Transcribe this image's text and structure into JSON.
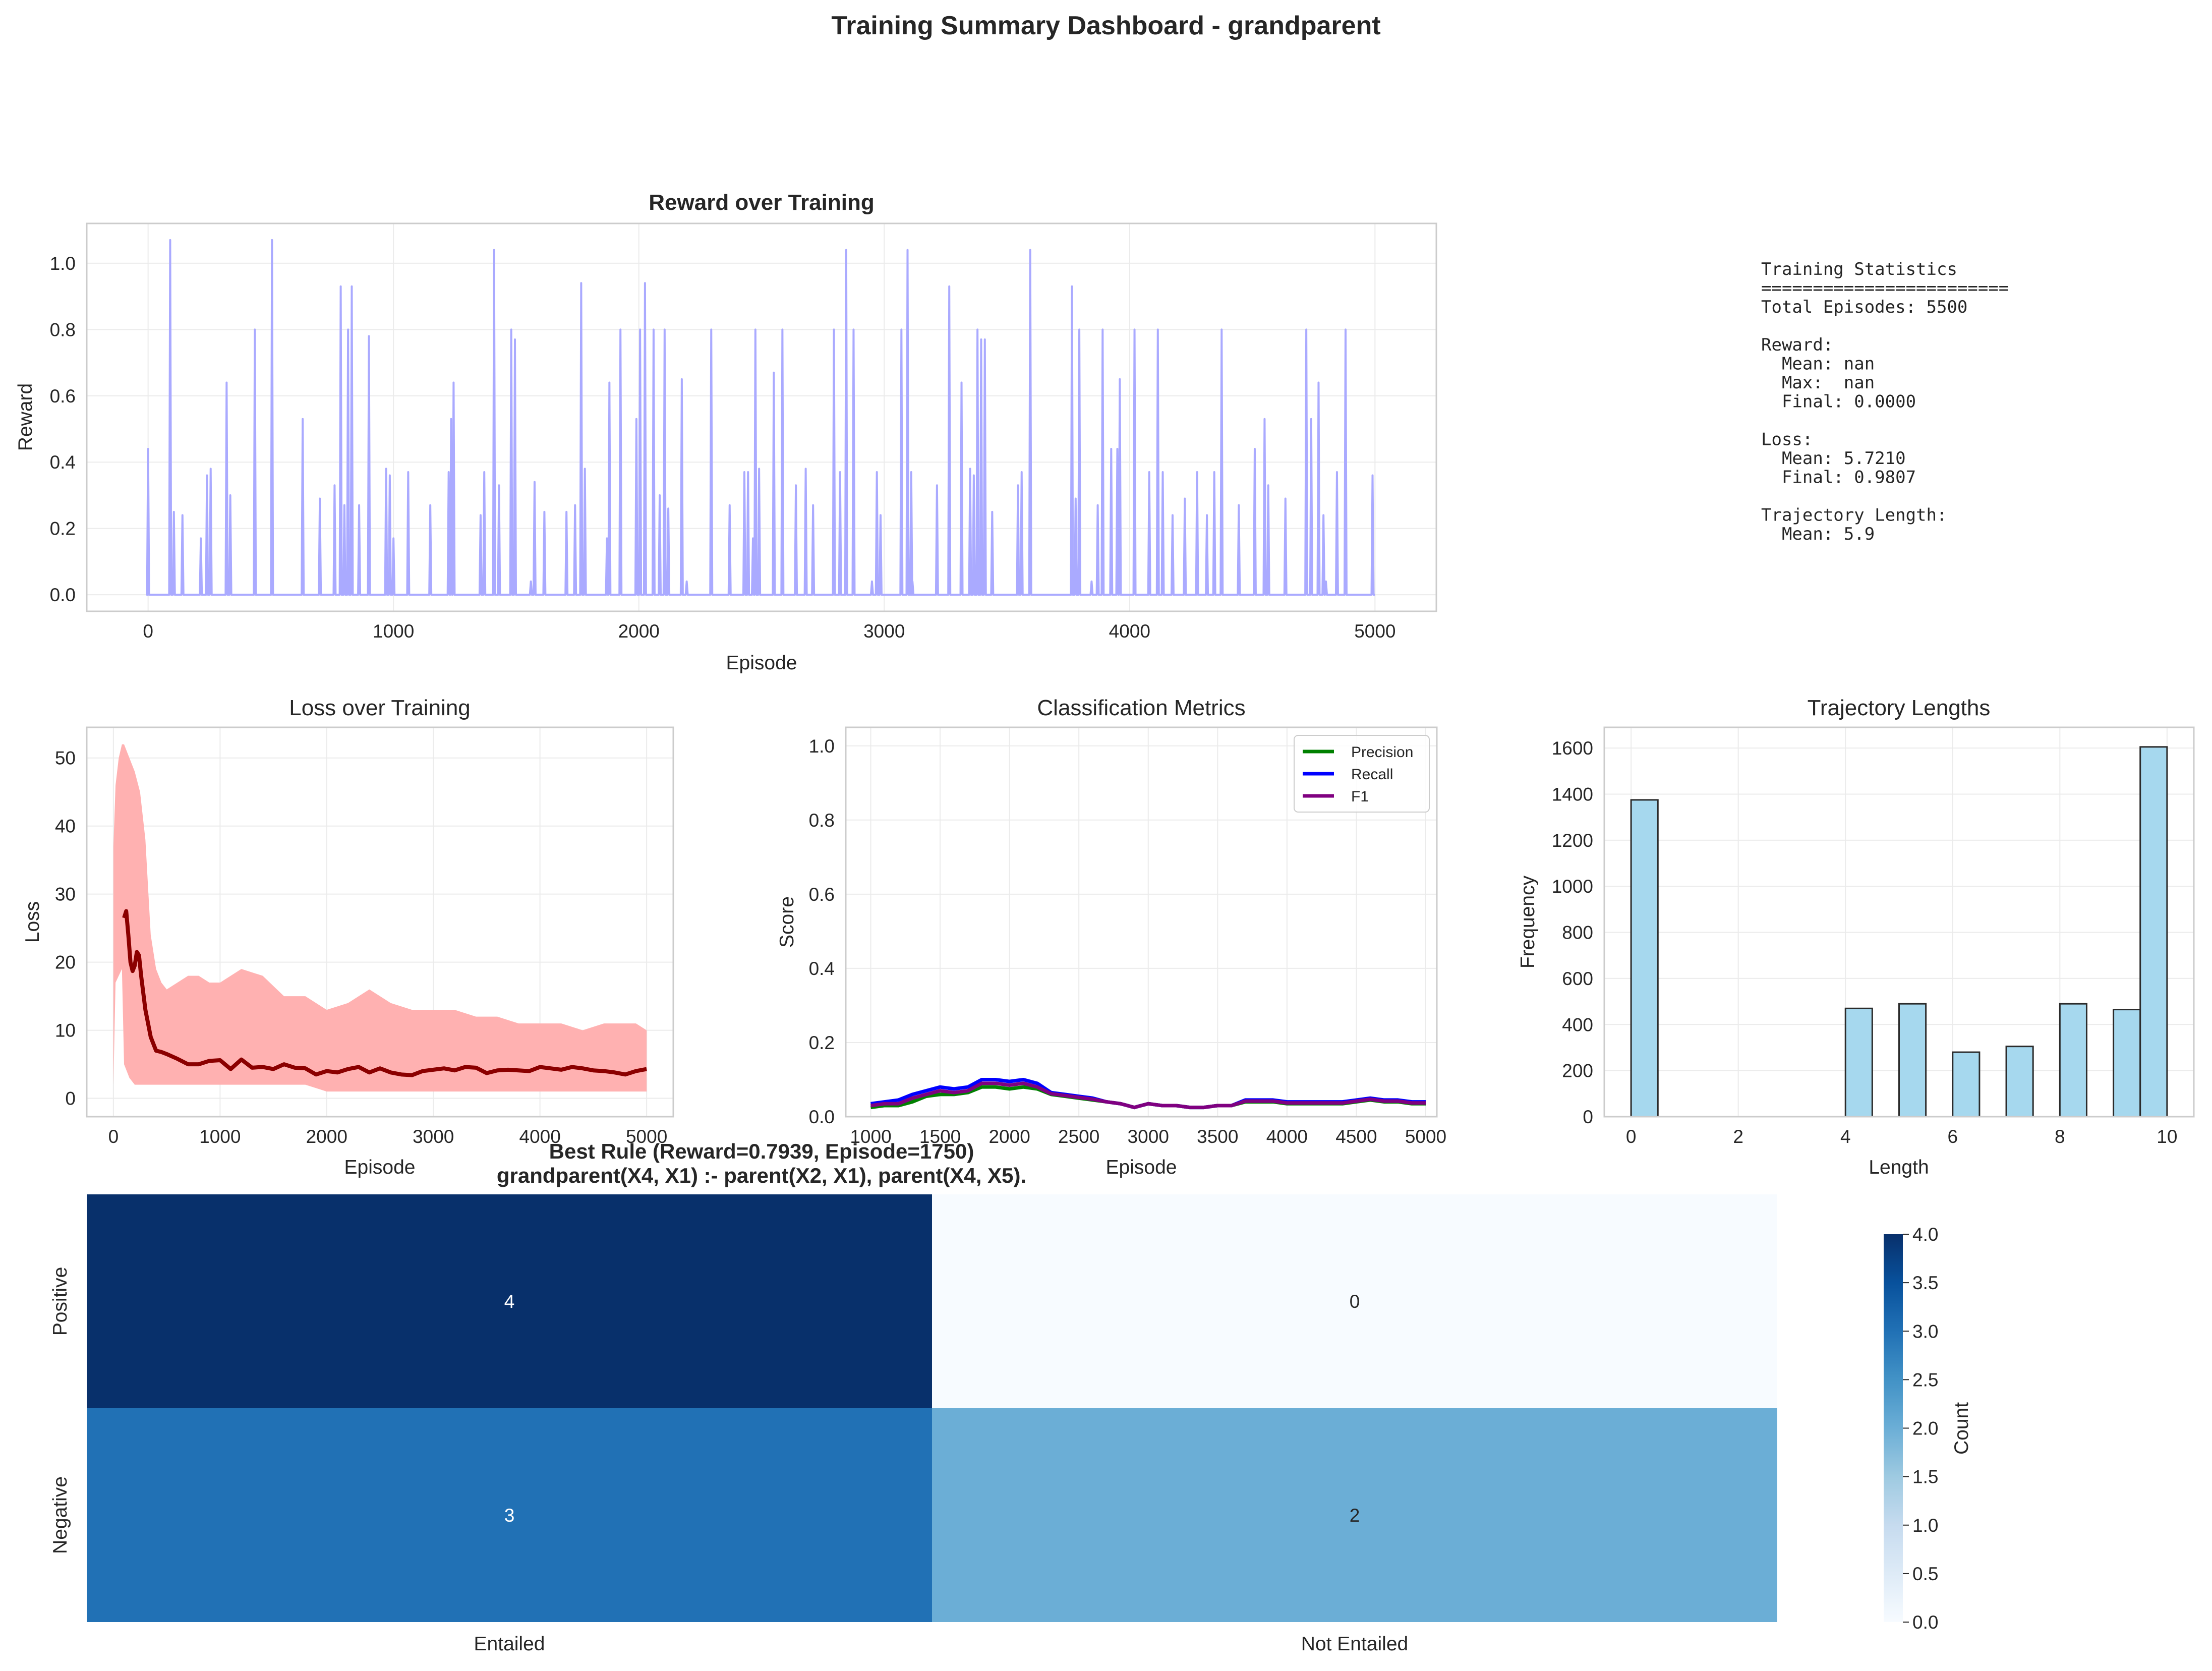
{
  "dashboard_title": "Training Summary Dashboard - grandparent",
  "stats_lines": [
    "Training Statistics",
    "========================",
    "Total Episodes: 5500",
    "",
    "Reward:",
    "  Mean: nan",
    "  Max:  nan",
    "  Final: 0.0000",
    "",
    "Loss:",
    "  Mean: 5.7210",
    "  Final: 0.9807",
    "",
    "Trajectory Length:",
    "  Mean: 5.9"
  ],
  "colors": {
    "reward": "#aaaaff",
    "loss_band": "#ffb1b1",
    "loss_line": "#8b0000",
    "precision": "#008000",
    "recall": "#0000ff",
    "f1": "#800080",
    "hist_fill": "#a6d8ee",
    "heat_low": "#f7fbff",
    "heat_high": "#08306b"
  },
  "chart_data": [
    {
      "id": "reward",
      "type": "line",
      "title": "Reward over Training",
      "xlabel": "Episode",
      "ylabel": "Reward",
      "xlim": [
        -250,
        5250
      ],
      "ylim": [
        -0.05,
        1.12
      ],
      "xticks": [
        0,
        1000,
        2000,
        3000,
        4000,
        5000
      ],
      "yticks": [
        0.0,
        0.2,
        0.4,
        0.6,
        0.8,
        1.0
      ],
      "grid": true,
      "baseline": 0.0,
      "spikes": [
        [
          0,
          0.44
        ],
        [
          90,
          1.07
        ],
        [
          105,
          0.25
        ],
        [
          140,
          0.24
        ],
        [
          215,
          0.17
        ],
        [
          240,
          0.36
        ],
        [
          255,
          0.38
        ],
        [
          320,
          0.64
        ],
        [
          335,
          0.3
        ],
        [
          435,
          0.8
        ],
        [
          505,
          1.07
        ],
        [
          630,
          0.53
        ],
        [
          700,
          0.29
        ],
        [
          760,
          0.33
        ],
        [
          785,
          0.93
        ],
        [
          800,
          0.27
        ],
        [
          815,
          0.8
        ],
        [
          830,
          0.93
        ],
        [
          860,
          0.27
        ],
        [
          900,
          0.78
        ],
        [
          970,
          0.38
        ],
        [
          985,
          0.36
        ],
        [
          1000,
          0.17
        ],
        [
          1060,
          0.37
        ],
        [
          1150,
          0.27
        ],
        [
          1225,
          0.37
        ],
        [
          1235,
          0.53
        ],
        [
          1245,
          0.64
        ],
        [
          1355,
          0.24
        ],
        [
          1370,
          0.37
        ],
        [
          1410,
          1.04
        ],
        [
          1430,
          0.33
        ],
        [
          1480,
          0.8
        ],
        [
          1495,
          0.77
        ],
        [
          1560,
          0.04
        ],
        [
          1575,
          0.34
        ],
        [
          1615,
          0.25
        ],
        [
          1705,
          0.25
        ],
        [
          1740,
          0.27
        ],
        [
          1765,
          0.94
        ],
        [
          1780,
          0.38
        ],
        [
          1870,
          0.17
        ],
        [
          1880,
          0.64
        ],
        [
          1925,
          0.8
        ],
        [
          1990,
          0.53
        ],
        [
          2005,
          0.8
        ],
        [
          2025,
          0.94
        ],
        [
          2060,
          0.8
        ],
        [
          2085,
          0.3
        ],
        [
          2105,
          0.8
        ],
        [
          2120,
          0.26
        ],
        [
          2175,
          0.65
        ],
        [
          2195,
          0.04
        ],
        [
          2295,
          0.8
        ],
        [
          2370,
          0.27
        ],
        [
          2430,
          0.37
        ],
        [
          2445,
          0.37
        ],
        [
          2465,
          0.17
        ],
        [
          2475,
          0.8
        ],
        [
          2490,
          0.38
        ],
        [
          2550,
          0.67
        ],
        [
          2585,
          0.8
        ],
        [
          2640,
          0.33
        ],
        [
          2680,
          0.38
        ],
        [
          2710,
          0.27
        ],
        [
          2795,
          0.8
        ],
        [
          2820,
          0.37
        ],
        [
          2845,
          1.04
        ],
        [
          2875,
          0.8
        ],
        [
          2950,
          0.04
        ],
        [
          2970,
          0.37
        ],
        [
          2985,
          0.24
        ],
        [
          3070,
          0.8
        ],
        [
          3095,
          1.04
        ],
        [
          3110,
          0.37
        ],
        [
          3115,
          0.04
        ],
        [
          3215,
          0.33
        ],
        [
          3265,
          0.93
        ],
        [
          3315,
          0.64
        ],
        [
          3350,
          0.38
        ],
        [
          3365,
          0.36
        ],
        [
          3380,
          0.8
        ],
        [
          3395,
          0.77
        ],
        [
          3410,
          0.77
        ],
        [
          3440,
          0.25
        ],
        [
          3545,
          0.33
        ],
        [
          3560,
          0.37
        ],
        [
          3595,
          1.04
        ],
        [
          3765,
          0.93
        ],
        [
          3780,
          0.29
        ],
        [
          3795,
          0.8
        ],
        [
          3845,
          0.04
        ],
        [
          3870,
          0.27
        ],
        [
          3890,
          0.8
        ],
        [
          3925,
          0.44
        ],
        [
          3950,
          0.44
        ],
        [
          3960,
          0.65
        ],
        [
          4020,
          0.8
        ],
        [
          4080,
          0.37
        ],
        [
          4115,
          0.8
        ],
        [
          4135,
          0.37
        ],
        [
          4175,
          0.24
        ],
        [
          4225,
          0.29
        ],
        [
          4275,
          0.37
        ],
        [
          4315,
          0.24
        ],
        [
          4345,
          0.37
        ],
        [
          4375,
          0.8
        ],
        [
          4445,
          0.27
        ],
        [
          4510,
          0.44
        ],
        [
          4550,
          0.53
        ],
        [
          4565,
          0.33
        ],
        [
          4635,
          0.29
        ],
        [
          4720,
          0.8
        ],
        [
          4740,
          0.53
        ],
        [
          4770,
          0.64
        ],
        [
          4790,
          0.24
        ],
        [
          4800,
          0.04
        ],
        [
          4845,
          0.37
        ],
        [
          4880,
          0.8
        ],
        [
          4990,
          0.36
        ]
      ]
    },
    {
      "id": "loss",
      "type": "area",
      "title": "Loss over Training",
      "xlabel": "Episode",
      "ylabel": "Loss",
      "xlim": [
        -250,
        5250
      ],
      "ylim": [
        -2.7,
        54.5
      ],
      "xticks": [
        0,
        1000,
        2000,
        3000,
        4000,
        5000
      ],
      "yticks": [
        0,
        10,
        20,
        30,
        40,
        50
      ],
      "grid": true,
      "band": {
        "x": [
          0,
          20,
          50,
          80,
          100,
          150,
          200,
          250,
          300,
          350,
          400,
          450,
          500,
          600,
          700,
          800,
          900,
          1000,
          1200,
          1400,
          1600,
          1800,
          2000,
          2200,
          2400,
          2600,
          2800,
          3000,
          3200,
          3400,
          3600,
          3800,
          4000,
          4200,
          4400,
          4600,
          4800,
          4900,
          5000
        ],
        "upper": [
          37,
          46,
          50,
          52,
          52,
          50,
          48,
          45,
          38,
          24,
          19,
          17,
          16,
          17,
          18,
          18,
          17,
          17,
          19,
          18,
          15,
          15,
          13,
          14,
          16,
          14,
          13,
          13,
          13,
          12,
          12,
          11,
          11,
          11,
          10,
          11,
          11,
          11,
          10
        ],
        "lower": [
          2,
          17,
          18,
          19,
          5,
          3,
          2,
          2,
          2,
          2,
          2,
          2,
          2,
          2,
          2,
          2,
          2,
          2,
          2,
          2,
          2,
          2,
          1,
          1,
          1,
          1,
          1,
          1,
          1,
          1,
          1,
          1,
          1,
          1,
          1,
          1,
          1,
          1,
          1
        ]
      },
      "series": {
        "x": [
          100,
          120,
          140,
          160,
          180,
          200,
          220,
          240,
          260,
          300,
          350,
          400,
          450,
          500,
          600,
          700,
          800,
          900,
          1000,
          1100,
          1200,
          1300,
          1400,
          1500,
          1600,
          1700,
          1800,
          1900,
          2000,
          2100,
          2200,
          2300,
          2400,
          2500,
          2600,
          2700,
          2800,
          2900,
          3000,
          3100,
          3200,
          3300,
          3400,
          3500,
          3600,
          3700,
          3800,
          3900,
          4000,
          4100,
          4200,
          4300,
          4400,
          4500,
          4600,
          4700,
          4800,
          4900,
          5000
        ],
        "y": [
          26.5,
          27.5,
          24,
          20,
          18.7,
          19.5,
          21.5,
          21,
          18,
          13,
          9,
          7,
          6.8,
          6.5,
          5.8,
          5,
          5,
          5.5,
          5.6,
          4.3,
          5.7,
          4.5,
          4.6,
          4.3,
          5,
          4.5,
          4.4,
          3.5,
          4,
          3.8,
          4.3,
          4.6,
          3.8,
          4.4,
          3.8,
          3.5,
          3.4,
          4,
          4.2,
          4.4,
          4.1,
          4.6,
          4.5,
          3.7,
          4.1,
          4.2,
          4.1,
          4,
          4.6,
          4.4,
          4.2,
          4.6,
          4.4,
          4.1,
          4,
          3.8,
          3.5,
          4,
          4.3
        ]
      }
    },
    {
      "id": "metrics",
      "type": "line",
      "title": "Classification Metrics",
      "xlabel": "Episode",
      "ylabel": "Score",
      "xlim": [
        820,
        5080
      ],
      "ylim": [
        0.0,
        1.05
      ],
      "xticks": [
        1000,
        1500,
        2000,
        2500,
        3000,
        3500,
        4000,
        4500,
        5000
      ],
      "yticks": [
        0.0,
        0.2,
        0.4,
        0.6,
        0.8,
        1.0
      ],
      "grid": true,
      "legend_position": "top-right",
      "x": [
        1000,
        1100,
        1200,
        1300,
        1400,
        1500,
        1600,
        1700,
        1800,
        1900,
        2000,
        2100,
        2200,
        2300,
        2400,
        2500,
        2600,
        2700,
        2800,
        2900,
        3000,
        3100,
        3200,
        3300,
        3400,
        3500,
        3600,
        3700,
        3800,
        3900,
        4000,
        4100,
        4200,
        4300,
        4400,
        4500,
        4600,
        4700,
        4800,
        4900,
        5000
      ],
      "series": [
        {
          "name": "Precision",
          "color": "#008000",
          "values": [
            0.025,
            0.03,
            0.03,
            0.04,
            0.055,
            0.06,
            0.06,
            0.065,
            0.08,
            0.08,
            0.075,
            0.08,
            0.075,
            0.06,
            0.055,
            0.05,
            0.045,
            0.04,
            0.035,
            0.025,
            0.035,
            0.03,
            0.03,
            0.025,
            0.025,
            0.03,
            0.03,
            0.04,
            0.04,
            0.04,
            0.035,
            0.035,
            0.035,
            0.035,
            0.035,
            0.04,
            0.045,
            0.04,
            0.04,
            0.035,
            0.035
          ]
        },
        {
          "name": "Recall",
          "color": "#0000ff",
          "values": [
            0.035,
            0.04,
            0.045,
            0.06,
            0.07,
            0.08,
            0.075,
            0.08,
            0.1,
            0.1,
            0.095,
            0.1,
            0.09,
            0.065,
            0.06,
            0.055,
            0.05,
            0.04,
            0.035,
            0.025,
            0.035,
            0.03,
            0.03,
            0.025,
            0.025,
            0.03,
            0.03,
            0.045,
            0.045,
            0.045,
            0.04,
            0.04,
            0.04,
            0.04,
            0.04,
            0.045,
            0.05,
            0.045,
            0.045,
            0.04,
            0.04
          ]
        },
        {
          "name": "F1",
          "color": "#800080",
          "values": [
            0.03,
            0.035,
            0.035,
            0.05,
            0.06,
            0.07,
            0.065,
            0.07,
            0.09,
            0.09,
            0.085,
            0.09,
            0.08,
            0.062,
            0.057,
            0.052,
            0.047,
            0.04,
            0.035,
            0.025,
            0.035,
            0.03,
            0.03,
            0.025,
            0.025,
            0.03,
            0.03,
            0.042,
            0.042,
            0.042,
            0.037,
            0.037,
            0.037,
            0.037,
            0.037,
            0.042,
            0.047,
            0.042,
            0.042,
            0.037,
            0.037
          ]
        }
      ]
    },
    {
      "id": "trajectory",
      "type": "bar",
      "title": "Trajectory Lengths",
      "xlabel": "Length",
      "ylabel": "Frequency",
      "xlim": [
        -0.5,
        10.5
      ],
      "ylim": [
        0,
        1690
      ],
      "xticks": [
        0,
        2,
        4,
        6,
        8,
        10
      ],
      "yticks": [
        0,
        200,
        400,
        600,
        800,
        1000,
        1200,
        1400,
        1600
      ],
      "grid": true,
      "bin_edges": [
        0,
        0.5,
        1,
        1.5,
        2,
        2.5,
        3,
        3.5,
        4,
        4.5,
        5,
        5.5,
        6,
        6.5,
        7,
        7.5,
        8,
        8.5,
        9,
        9.5,
        10
      ],
      "values": [
        1375,
        0,
        0,
        0,
        0,
        0,
        0,
        0,
        470,
        0,
        490,
        0,
        280,
        0,
        305,
        0,
        490,
        0,
        465,
        1605
      ]
    },
    {
      "id": "confusion",
      "type": "heatmap",
      "title": "Best Rule (Reward=0.7939, Episode=1750)",
      "subtitle": "grandparent(X4, X1) :- parent(X2, X1), parent(X4, X5).",
      "rows": [
        "Positive",
        "Negative"
      ],
      "columns": [
        "Entailed",
        "Not Entailed"
      ],
      "values": [
        [
          4,
          0
        ],
        [
          3,
          2
        ]
      ],
      "colorbar_label": "Count",
      "vmin": 0,
      "vmax": 4,
      "colorbar_ticks": [
        0.0,
        0.5,
        1.0,
        1.5,
        2.0,
        2.5,
        3.0,
        3.5,
        4.0
      ]
    }
  ]
}
